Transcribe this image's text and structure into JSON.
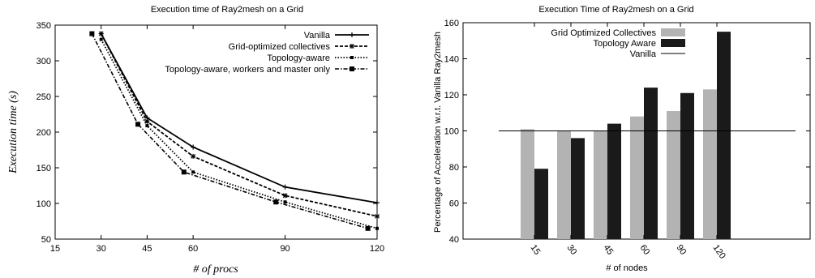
{
  "chart_data": [
    {
      "type": "line",
      "title": "Execution time of Ray2mesh on a Grid",
      "xlabel": "# of procs",
      "ylabel": "Execution time (s)",
      "xlim": [
        15,
        120
      ],
      "ylim": [
        50,
        350
      ],
      "xticks": [
        15,
        30,
        45,
        60,
        90,
        120
      ],
      "yticks": [
        50,
        100,
        150,
        200,
        250,
        300,
        350
      ],
      "legend_position": "top-right",
      "series": [
        {
          "name": "Vanilla",
          "marker": "plus",
          "dash": "solid",
          "x": [
            30,
            45,
            60,
            90,
            120
          ],
          "y": [
            338,
            220,
            179,
            123,
            101
          ]
        },
        {
          "name": "Grid-optimized collectives",
          "marker": "star",
          "dash": "dash",
          "x": [
            30,
            45,
            60,
            90,
            120
          ],
          "y": [
            338,
            215,
            166,
            111,
            82
          ]
        },
        {
          "name": "Topology-aware",
          "marker": "dot",
          "dash": "dot",
          "x": [
            30,
            45,
            60,
            90,
            120
          ],
          "y": [
            330,
            209,
            144,
            102,
            65
          ]
        },
        {
          "name": "Topology-aware, workers and master only",
          "marker": "square",
          "dash": "dashdot",
          "x": [
            27,
            42,
            57,
            87,
            117
          ],
          "y": [
            338,
            211,
            144,
            102,
            65
          ]
        }
      ]
    },
    {
      "type": "bar",
      "title": "Execution Time of Ray2mesh on a Grid",
      "xlabel": "# of nodes",
      "ylabel": "Percentage of Acceleration w.r.t. Vanilla Ray2mesh",
      "categories": [
        "15",
        "30",
        "45",
        "60",
        "90",
        "120"
      ],
      "ylim": [
        40,
        160
      ],
      "yticks": [
        40,
        60,
        80,
        100,
        120,
        140,
        160
      ],
      "legend_position": "top-left",
      "series": [
        {
          "name": "Grid Optimized Collectives",
          "color": "#b3b3b3",
          "values": [
            101,
            100,
            100,
            108,
            111,
            123
          ]
        },
        {
          "name": "Topology Aware",
          "color": "#1a1a1a",
          "values": [
            79,
            96,
            104,
            124,
            121,
            155
          ]
        }
      ],
      "reference_line": {
        "name": "Vanilla",
        "value": 100
      }
    }
  ]
}
